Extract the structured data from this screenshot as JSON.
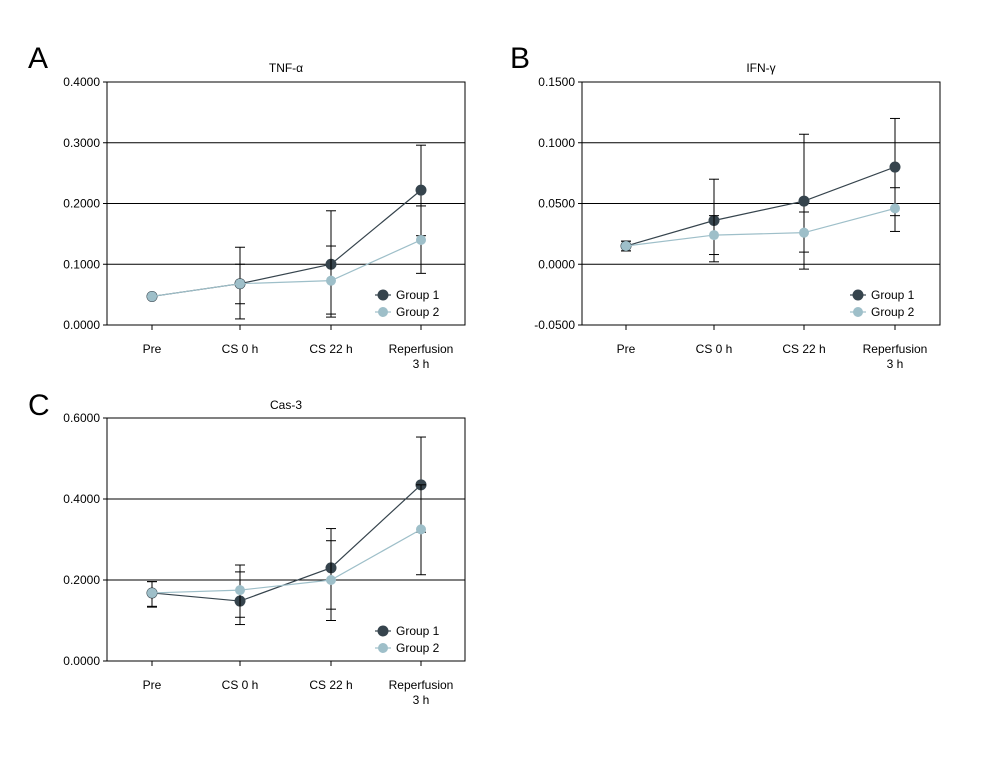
{
  "colors": {
    "group1": "#36444d",
    "group2": "#9ebfc9",
    "axis": "#000000",
    "grid": "#000000"
  },
  "chart_data": [
    {
      "panel": "A",
      "type": "line",
      "title": "TNF-α",
      "categories": [
        "Pre",
        "CS 0 h",
        "CS 22 h",
        [
          "Reperfusion",
          "3 h"
        ]
      ],
      "ylim": [
        0,
        0.4
      ],
      "yticks": [
        0,
        0.1,
        0.2,
        0.3,
        0.4
      ],
      "ytick_labels": [
        "0.0000",
        "0.1000",
        "0.2000",
        "0.3000",
        "0.4000"
      ],
      "grid": true,
      "legend_position": "bottom-right",
      "series": [
        {
          "name": "Group 1",
          "values": [
            0.047,
            0.068,
            0.1,
            0.222
          ],
          "err_low": [
            null,
            0.035,
            0.013,
            0.147
          ],
          "err_high": [
            null,
            0.1,
            0.188,
            0.296
          ]
        },
        {
          "name": "Group 2",
          "values": [
            0.047,
            0.068,
            0.073,
            0.14
          ],
          "err_low": [
            null,
            0.01,
            0.018,
            0.085
          ],
          "err_high": [
            null,
            0.128,
            0.13,
            0.196
          ]
        }
      ]
    },
    {
      "panel": "B",
      "type": "line",
      "title": "IFN-γ",
      "categories": [
        "Pre",
        "CS 0 h",
        "CS 22 h",
        [
          "Reperfusion",
          "3 h"
        ]
      ],
      "ylim": [
        -0.05,
        0.15
      ],
      "yticks": [
        -0.05,
        0,
        0.05,
        0.1,
        0.15
      ],
      "ytick_labels": [
        "-0.0500",
        "0.0000",
        "0.0500",
        "0.1000",
        "0.1500"
      ],
      "grid": true,
      "legend_position": "bottom-right",
      "series": [
        {
          "name": "Group 1",
          "values": [
            0.015,
            0.036,
            0.052,
            0.08
          ],
          "err_low": [
            0.011,
            0.002,
            0.01,
            0.04
          ],
          "err_high": [
            0.019,
            0.07,
            0.107,
            0.12
          ]
        },
        {
          "name": "Group 2",
          "values": [
            0.015,
            0.024,
            0.026,
            0.046
          ],
          "err_low": [
            0.011,
            0.008,
            -0.004,
            0.027
          ],
          "err_high": [
            0.019,
            0.04,
            0.043,
            0.063
          ]
        }
      ]
    },
    {
      "panel": "C",
      "type": "line",
      "title": "Cas-3",
      "categories": [
        "Pre",
        "CS 0 h",
        "CS 22 h",
        [
          "Reperfusion",
          "3 h"
        ]
      ],
      "ylim": [
        0,
        0.6
      ],
      "yticks": [
        0,
        0.2,
        0.4,
        0.6
      ],
      "ytick_labels": [
        "0.0000",
        "0.2000",
        "0.4000",
        "0.6000"
      ],
      "grid": true,
      "legend_position": "bottom-right",
      "series": [
        {
          "name": "Group 1",
          "values": [
            0.168,
            0.148,
            0.23,
            0.435
          ],
          "err_low": [
            0.133,
            0.108,
            0.128,
            0.318
          ],
          "err_high": [
            0.196,
            0.22,
            0.327,
            0.553
          ]
        },
        {
          "name": "Group 2",
          "values": [
            0.168,
            0.175,
            0.2,
            0.325
          ],
          "err_low": [
            0.135,
            0.09,
            0.1,
            0.213
          ],
          "err_high": [
            0.196,
            0.237,
            0.297,
            0.435
          ]
        }
      ]
    }
  ]
}
